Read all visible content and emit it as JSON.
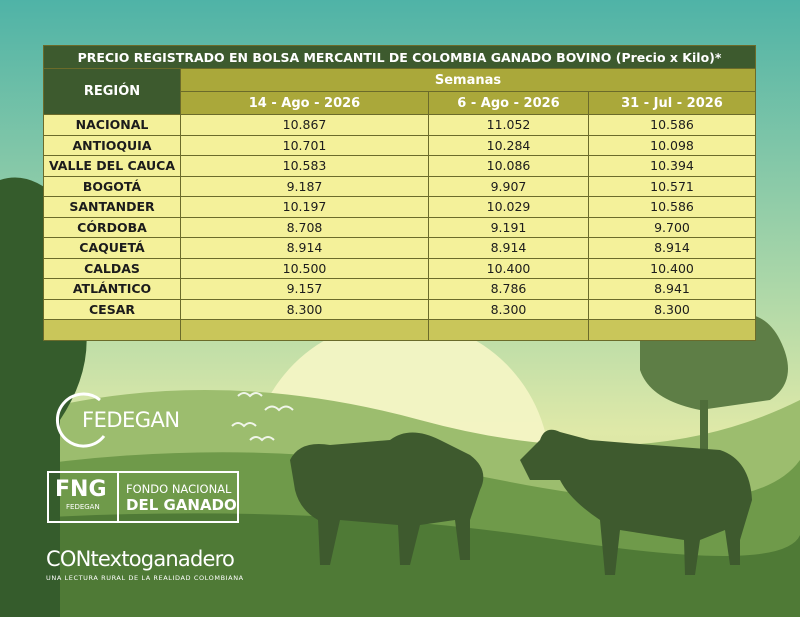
{
  "table": {
    "title": "PRECIO REGISTRADO EN BOLSA MERCANTIL DE COLOMBIA GANADO BOVINO  (Precio x Kilo)*",
    "region_header": "REGIÓN",
    "weeks_header": "Semanas",
    "columns": [
      "14 - Ago - 2026",
      "6 - Ago - 2026",
      "31 - Jul - 2026"
    ],
    "rows": [
      [
        "NACIONAL",
        "10.867",
        "11.052",
        "10.586"
      ],
      [
        "ANTIOQUIA",
        "10.701",
        "10.284",
        "10.098"
      ],
      [
        "VALLE DEL CAUCA",
        "10.583",
        "10.086",
        "10.394"
      ],
      [
        "BOGOTÁ",
        "9.187",
        "9.907",
        "10.571"
      ],
      [
        "SANTANDER",
        "10.197",
        "10.029",
        "10.586"
      ],
      [
        "CÓRDOBA",
        "8.708",
        "9.191",
        "9.700"
      ],
      [
        "CAQUETÁ",
        "8.914",
        "8.914",
        "8.914"
      ],
      [
        "CALDAS",
        "10.500",
        "10.400",
        "10.400"
      ],
      [
        "ATLÁNTICO",
        "9.157",
        "8.786",
        "8.941"
      ],
      [
        "CESAR",
        "8.300",
        "8.300",
        "8.300"
      ]
    ]
  },
  "logos": {
    "fedegan": "FEDEGAN",
    "fng": "FNG",
    "fng_sub": "FEDEGAN",
    "fondo_line1": "FONDO NACIONAL",
    "fondo_line2": "DEL GANADO",
    "contexto": "CONtextoganadero",
    "contexto_tagline": "UNA LECTURA RURAL DE LA REALIDAD COLOMBIANA"
  }
}
